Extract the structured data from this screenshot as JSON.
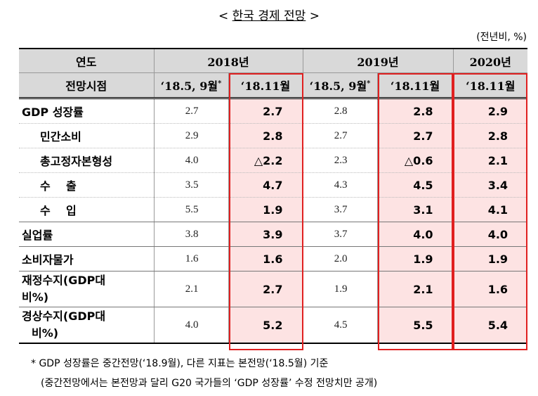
{
  "title": {
    "prefix": "< ",
    "text": "한국 경제 전망",
    "suffix": " >"
  },
  "unit": "(전년비, %)",
  "header": {
    "row1": {
      "label": "연도",
      "y2018": "2018년",
      "y2019": "2019년",
      "y2020": "2020년"
    },
    "row2": {
      "label": "전망시점",
      "c1": "‘18.5, 9월",
      "c1_mark": "*",
      "c2": "‘18.11월",
      "c3": "‘18.5, 9월",
      "c3_mark": "*",
      "c4": "‘18.11월",
      "c5": "‘18.11월"
    }
  },
  "rows": [
    {
      "label": "GDP 성장률",
      "v": [
        "2.7",
        "2.7",
        "2.8",
        "2.8",
        "2.9"
      ]
    },
    {
      "label": "민간소비",
      "v": [
        "2.9",
        "2.8",
        "2.7",
        "2.7",
        "2.8"
      ]
    },
    {
      "label": "총고정자본형성",
      "v": [
        "4.0",
        "△2.2",
        "2.3",
        "△0.6",
        "2.1"
      ]
    },
    {
      "label": "수    출",
      "v": [
        "3.5",
        "4.7",
        "4.3",
        "4.5",
        "3.4"
      ]
    },
    {
      "label": "수    입",
      "v": [
        "5.5",
        "1.9",
        "3.7",
        "3.1",
        "4.1"
      ]
    },
    {
      "label": "실업률",
      "v": [
        "3.8",
        "3.9",
        "3.7",
        "4.0",
        "4.0"
      ]
    },
    {
      "label": "소비자물가",
      "v": [
        "1.6",
        "1.6",
        "2.0",
        "1.9",
        "1.9"
      ]
    },
    {
      "label_l1": "재정수지(GDP대",
      "label_l2": "비%)",
      "v": [
        "2.1",
        "2.7",
        "1.9",
        "2.1",
        "1.6"
      ]
    },
    {
      "label_l1": "경상수지(GDP대",
      "label_l2": "비%)",
      "v": [
        "4.0",
        "5.2",
        "4.5",
        "5.5",
        "5.4"
      ]
    }
  ],
  "footnotes": {
    "line1": "* GDP 성장률은 중간전망(‘18.9월), 다른 지표는 본전망(‘18.5월) 기준",
    "line2": "(중간전망에서는 본전망과 달리 G20 국가들의 ‘GDP 성장률’ 수정 전망치만 공개)"
  },
  "colors": {
    "highlight_fill": "#fde3e3",
    "highlight_border": "#e02020",
    "header_fill": "#d9d9d9"
  }
}
